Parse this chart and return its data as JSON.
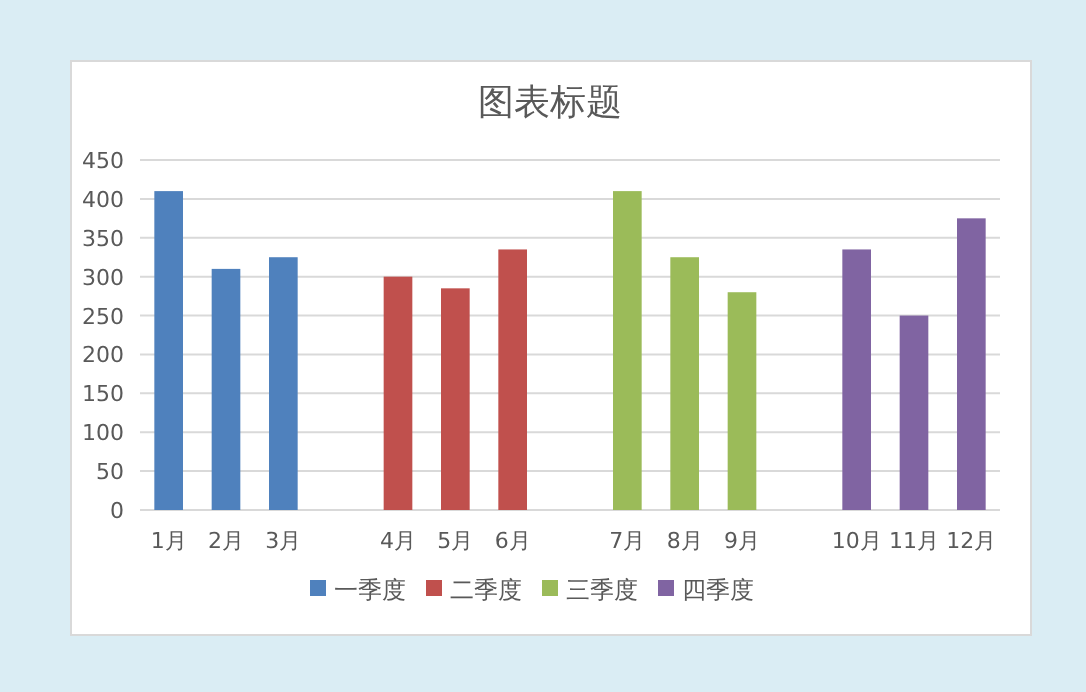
{
  "chart_data": {
    "type": "bar",
    "title": "图表标题",
    "categories": [
      "1月",
      "2月",
      "3月",
      null,
      "4月",
      "5月",
      "6月",
      null,
      "7月",
      "8月",
      "9月",
      null,
      "10月",
      "11月",
      "12月"
    ],
    "series": [
      {
        "name": "一季度",
        "color": "#4f81bd",
        "values": [
          410,
          310,
          325,
          null,
          null,
          null,
          null,
          null,
          null,
          null,
          null,
          null,
          null,
          null,
          null
        ]
      },
      {
        "name": "二季度",
        "color": "#c0504d",
        "values": [
          null,
          null,
          null,
          null,
          300,
          285,
          335,
          null,
          null,
          null,
          null,
          null,
          null,
          null,
          null
        ]
      },
      {
        "name": "三季度",
        "color": "#9bbb59",
        "values": [
          null,
          null,
          null,
          null,
          null,
          null,
          null,
          null,
          410,
          325,
          280,
          null,
          null,
          null,
          null
        ]
      },
      {
        "name": "四季度",
        "color": "#8064a2",
        "values": [
          null,
          null,
          null,
          null,
          null,
          null,
          null,
          null,
          null,
          null,
          null,
          null,
          335,
          250,
          375
        ]
      }
    ],
    "stacked": true,
    "ylim": [
      0,
      450
    ],
    "yticks": [
      0,
      50,
      100,
      150,
      200,
      250,
      300,
      350,
      400,
      450
    ],
    "grid": "y",
    "legend": "bottom"
  }
}
